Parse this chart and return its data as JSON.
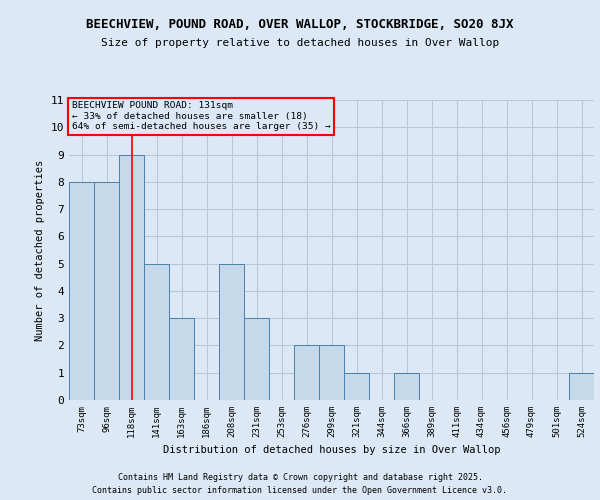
{
  "title1": "BEECHVIEW, POUND ROAD, OVER WALLOP, STOCKBRIDGE, SO20 8JX",
  "title2": "Size of property relative to detached houses in Over Wallop",
  "xlabel": "Distribution of detached houses by size in Over Wallop",
  "ylabel": "Number of detached properties",
  "categories": [
    "73sqm",
    "96sqm",
    "118sqm",
    "141sqm",
    "163sqm",
    "186sqm",
    "208sqm",
    "231sqm",
    "253sqm",
    "276sqm",
    "299sqm",
    "321sqm",
    "344sqm",
    "366sqm",
    "389sqm",
    "411sqm",
    "434sqm",
    "456sqm",
    "479sqm",
    "501sqm",
    "524sqm"
  ],
  "values": [
    8,
    8,
    9,
    5,
    3,
    0,
    5,
    3,
    0,
    2,
    2,
    1,
    0,
    1,
    0,
    0,
    0,
    0,
    0,
    0,
    1
  ],
  "bar_color": "#c6d9ea",
  "bar_edge_color": "#4a80aa",
  "red_line_index": 2,
  "annotation_title": "BEECHVIEW POUND ROAD: 131sqm",
  "annotation_line1": "← 33% of detached houses are smaller (18)",
  "annotation_line2": "64% of semi-detached houses are larger (35) →",
  "ylim": [
    0,
    11
  ],
  "yticks": [
    0,
    1,
    2,
    3,
    4,
    5,
    6,
    7,
    8,
    9,
    10,
    11
  ],
  "background_color": "#dce8f5",
  "grid_color": "#b8c8d8",
  "footer1": "Contains HM Land Registry data © Crown copyright and database right 2025.",
  "footer2": "Contains public sector information licensed under the Open Government Licence v3.0."
}
